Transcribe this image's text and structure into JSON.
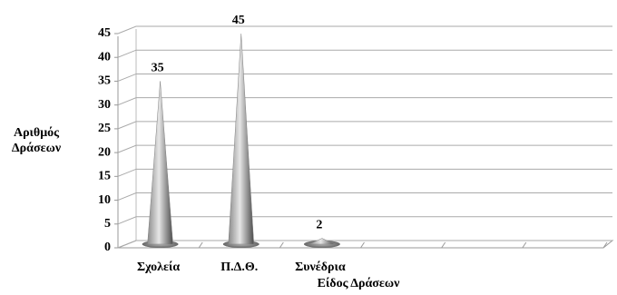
{
  "chart_data": {
    "type": "cone",
    "ylabel": "Αριθμός Δράσεων",
    "xlabel": "Είδος Δράσεων",
    "categories": [
      "Σχολεία",
      "Π.Δ.Θ.",
      "Συνέδρια",
      null,
      null,
      null
    ],
    "values": [
      35,
      45,
      2,
      null,
      null,
      null
    ],
    "color": "#808080",
    "ylim": [
      0,
      45
    ],
    "yticks": [
      0,
      5,
      10,
      15,
      20,
      25,
      30,
      35,
      40,
      45
    ],
    "grid": true
  }
}
